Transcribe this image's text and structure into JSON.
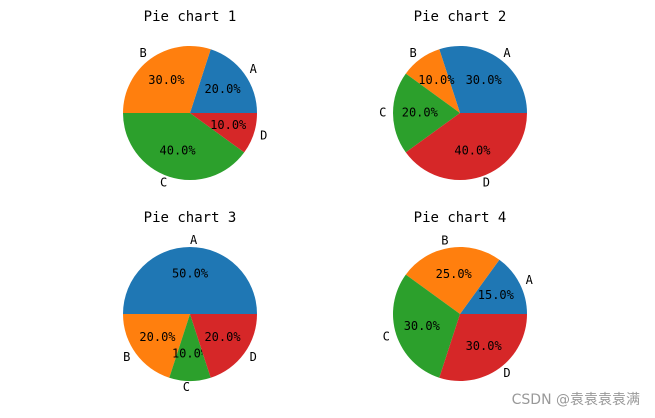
{
  "chart_data": [
    {
      "type": "pie",
      "title": "Pie chart 1",
      "categories": [
        "A",
        "B",
        "C",
        "D"
      ],
      "values": [
        20,
        30,
        40,
        10
      ],
      "value_labels": [
        "20.0%",
        "30.0%",
        "40.0%",
        "10.0%"
      ],
      "colors": [
        "#1f77b4",
        "#ff7f0e",
        "#2ca02c",
        "#d62728"
      ]
    },
    {
      "type": "pie",
      "title": "Pie chart 2",
      "categories": [
        "A",
        "B",
        "C",
        "D"
      ],
      "values": [
        30,
        10,
        20,
        40
      ],
      "value_labels": [
        "30.0%",
        "10.0%",
        "20.0%",
        "40.0%"
      ],
      "colors": [
        "#1f77b4",
        "#ff7f0e",
        "#2ca02c",
        "#d62728"
      ]
    },
    {
      "type": "pie",
      "title": "Pie chart 3",
      "categories": [
        "A",
        "B",
        "C",
        "D"
      ],
      "values": [
        50,
        20,
        10,
        20
      ],
      "value_labels": [
        "50.0%",
        "20.0%",
        "10.0%",
        "20.0%"
      ],
      "colors": [
        "#1f77b4",
        "#ff7f0e",
        "#2ca02c",
        "#d62728"
      ]
    },
    {
      "type": "pie",
      "title": "Pie chart 4",
      "categories": [
        "A",
        "B",
        "C",
        "D"
      ],
      "values": [
        15,
        25,
        30,
        30
      ],
      "value_labels": [
        "15.0%",
        "25.0%",
        "30.0%",
        "30.0%"
      ],
      "colors": [
        "#1f77b4",
        "#ff7f0e",
        "#2ca02c",
        "#d62728"
      ]
    }
  ],
  "watermark": "CSDN @袁袁袁袁满"
}
